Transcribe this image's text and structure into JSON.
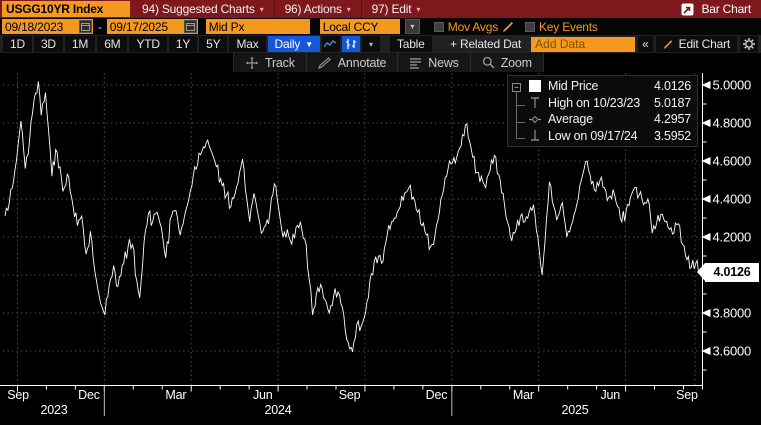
{
  "titlebar": {
    "ticker": "USGG10YR Index",
    "menus": [
      {
        "label": "94) Suggested Charts"
      },
      {
        "label": "96) Actions"
      },
      {
        "label": "97) Edit"
      }
    ],
    "export_label": "Bar Chart"
  },
  "fields": {
    "date_start": "09/18/2023",
    "date_end": "09/17/2025",
    "dash": "-",
    "price_field": "Mid Px",
    "currency": "Local CCY",
    "mov_avgs_label": "Mov Avgs",
    "key_events_label": "Key Events"
  },
  "periods": {
    "buttons": [
      "1D",
      "3D",
      "1M",
      "6M",
      "YTD",
      "1Y",
      "5Y",
      "Max"
    ],
    "frequency": "Daily",
    "table_label": "Table",
    "related_label": "+ Related Dat",
    "add_data_placeholder": "Add Data",
    "collapse_label": "«",
    "edit_chart_label": "Edit Chart"
  },
  "toolbar": {
    "items": [
      {
        "label": "Track"
      },
      {
        "label": "Annotate"
      },
      {
        "label": "News"
      },
      {
        "label": "Zoom"
      }
    ]
  },
  "legend": {
    "rows": [
      {
        "label": "Mid Price",
        "value": "4.0126"
      },
      {
        "label": "High on 10/23/23",
        "value": "5.0187"
      },
      {
        "label": "Average",
        "value": "4.2957"
      },
      {
        "label": "Low on 09/17/24",
        "value": "3.5952"
      }
    ]
  },
  "colors": {
    "maroon": "#7e181c",
    "amber": "#f5991e",
    "blue": "#1457d8",
    "chart_line": "#ffffff",
    "grid": "#4d4d4d",
    "axis": "#ffffff"
  },
  "chart_data": {
    "type": "line",
    "title": "USGG10YR Index — Mid Price daily yield",
    "x_unit": "months since 2023-09-18",
    "x_range": [
      0,
      24
    ],
    "ylim_visible": [
      3.45,
      5.05
    ],
    "grid": "dotted",
    "legend_position": "top-right",
    "y_ticks": [
      {
        "value": 5.0,
        "label": "5.0000"
      },
      {
        "value": 4.8,
        "label": "4.8000"
      },
      {
        "value": 4.6,
        "label": "4.6000"
      },
      {
        "value": 4.4,
        "label": "4.4000"
      },
      {
        "value": 4.2,
        "label": "4.2000"
      },
      {
        "value": 3.8,
        "label": "3.8000"
      },
      {
        "value": 3.6,
        "label": "3.6000"
      }
    ],
    "unlabeled_gridline_value": 4.0,
    "last_price": {
      "value": 4.0126,
      "label": "4.0126"
    },
    "stats": {
      "mid": 4.0126,
      "high_date": "10/23/23",
      "high": 5.0187,
      "average": 4.2957,
      "low_date": "09/17/24",
      "low": 3.5952
    },
    "x_month_labels": [
      "Sep",
      "Dec",
      "Mar",
      "Jun",
      "Sep",
      "Dec",
      "Mar",
      "Jun",
      "Sep"
    ],
    "x_year_labels": [
      "2023",
      "2024",
      "2025"
    ],
    "series_anchors": [
      [
        0,
        4.31
      ],
      [
        0.15,
        4.38
      ],
      [
        0.3,
        4.5
      ],
      [
        0.45,
        4.68
      ],
      [
        0.55,
        4.81
      ],
      [
        0.7,
        4.56
      ],
      [
        0.85,
        4.71
      ],
      [
        1,
        4.92
      ],
      [
        1.15,
        5.019
      ],
      [
        1.25,
        4.84
      ],
      [
        1.4,
        4.96
      ],
      [
        1.5,
        4.77
      ],
      [
        1.62,
        4.52
      ],
      [
        1.75,
        4.66
      ],
      [
        1.9,
        4.57
      ],
      [
        2,
        4.44
      ],
      [
        2.15,
        4.53
      ],
      [
        2.3,
        4.41
      ],
      [
        2.5,
        4.26
      ],
      [
        2.65,
        4.31
      ],
      [
        2.8,
        4.11
      ],
      [
        2.95,
        4.23
      ],
      [
        3.1,
        4.02
      ],
      [
        3.3,
        3.85
      ],
      [
        3.45,
        3.79
      ],
      [
        3.6,
        3.95
      ],
      [
        3.75,
        4.05
      ],
      [
        3.9,
        3.94
      ],
      [
        4.1,
        4.06
      ],
      [
        4.25,
        4.15
      ],
      [
        4.4,
        4.16
      ],
      [
        4.55,
        3.97
      ],
      [
        4.65,
        3.88
      ],
      [
        4.8,
        4.17
      ],
      [
        4.95,
        4.32
      ],
      [
        5.1,
        4.28
      ],
      [
        5.25,
        4.33
      ],
      [
        5.4,
        4.25
      ],
      [
        5.55,
        4.09
      ],
      [
        5.75,
        4.31
      ],
      [
        5.9,
        4.34
      ],
      [
        6.05,
        4.21
      ],
      [
        6.2,
        4.31
      ],
      [
        6.35,
        4.4
      ],
      [
        6.5,
        4.52
      ],
      [
        6.65,
        4.58
      ],
      [
        6.8,
        4.65
      ],
      [
        7,
        4.71
      ],
      [
        7.15,
        4.64
      ],
      [
        7.3,
        4.57
      ],
      [
        7.5,
        4.47
      ],
      [
        7.65,
        4.42
      ],
      [
        7.8,
        4.36
      ],
      [
        7.95,
        4.43
      ],
      [
        8.1,
        4.54
      ],
      [
        8.2,
        4.61
      ],
      [
        8.35,
        4.4
      ],
      [
        8.45,
        4.28
      ],
      [
        8.6,
        4.43
      ],
      [
        8.75,
        4.31
      ],
      [
        8.85,
        4.22
      ],
      [
        9,
        4.26
      ],
      [
        9.15,
        4.33
      ],
      [
        9.3,
        4.48
      ],
      [
        9.45,
        4.35
      ],
      [
        9.6,
        4.2
      ],
      [
        9.75,
        4.24
      ],
      [
        9.9,
        4.16
      ],
      [
        10.05,
        4.25
      ],
      [
        10.2,
        4.28
      ],
      [
        10.35,
        4.19
      ],
      [
        10.5,
        3.98
      ],
      [
        10.62,
        3.79
      ],
      [
        10.75,
        3.9
      ],
      [
        10.9,
        3.95
      ],
      [
        11.05,
        3.87
      ],
      [
        11.2,
        3.8
      ],
      [
        11.35,
        3.89
      ],
      [
        11.5,
        3.91
      ],
      [
        11.65,
        3.83
      ],
      [
        11.8,
        3.66
      ],
      [
        11.95,
        3.62
      ],
      [
        12,
        3.5952
      ],
      [
        12.15,
        3.74
      ],
      [
        12.3,
        3.73
      ],
      [
        12.45,
        3.8
      ],
      [
        12.6,
        3.97
      ],
      [
        12.75,
        4.07
      ],
      [
        12.9,
        4.1
      ],
      [
        13.05,
        4.07
      ],
      [
        13.2,
        4.21
      ],
      [
        13.35,
        4.28
      ],
      [
        13.5,
        4.3
      ],
      [
        13.65,
        4.36
      ],
      [
        13.8,
        4.43
      ],
      [
        13.95,
        4.46
      ],
      [
        14.1,
        4.41
      ],
      [
        14.25,
        4.33
      ],
      [
        14.4,
        4.26
      ],
      [
        14.55,
        4.21
      ],
      [
        14.7,
        4.15
      ],
      [
        14.85,
        4.21
      ],
      [
        15,
        4.33
      ],
      [
        15.15,
        4.45
      ],
      [
        15.3,
        4.56
      ],
      [
        15.45,
        4.59
      ],
      [
        15.6,
        4.62
      ],
      [
        15.75,
        4.68
      ],
      [
        15.9,
        4.79
      ],
      [
        16.05,
        4.7
      ],
      [
        16.15,
        4.62
      ],
      [
        16.3,
        4.54
      ],
      [
        16.45,
        4.52
      ],
      [
        16.6,
        4.46
      ],
      [
        16.75,
        4.55
      ],
      [
        16.9,
        4.63
      ],
      [
        17.05,
        4.53
      ],
      [
        17.2,
        4.43
      ],
      [
        17.35,
        4.28
      ],
      [
        17.5,
        4.18
      ],
      [
        17.65,
        4.24
      ],
      [
        17.8,
        4.31
      ],
      [
        17.95,
        4.28
      ],
      [
        18.1,
        4.33
      ],
      [
        18.25,
        4.37
      ],
      [
        18.4,
        4.2
      ],
      [
        18.55,
        4.0
      ],
      [
        18.65,
        4.18
      ],
      [
        18.8,
        4.49
      ],
      [
        18.95,
        4.36
      ],
      [
        19.1,
        4.31
      ],
      [
        19.25,
        4.38
      ],
      [
        19.4,
        4.2
      ],
      [
        19.55,
        4.26
      ],
      [
        19.7,
        4.34
      ],
      [
        19.85,
        4.47
      ],
      [
        20,
        4.56
      ],
      [
        20.1,
        4.6
      ],
      [
        20.25,
        4.48
      ],
      [
        20.4,
        4.44
      ],
      [
        20.55,
        4.5
      ],
      [
        20.7,
        4.46
      ],
      [
        20.85,
        4.41
      ],
      [
        21,
        4.45
      ],
      [
        21.15,
        4.36
      ],
      [
        21.3,
        4.28
      ],
      [
        21.45,
        4.34
      ],
      [
        21.6,
        4.41
      ],
      [
        21.75,
        4.46
      ],
      [
        21.9,
        4.42
      ],
      [
        22.05,
        4.37
      ],
      [
        22.2,
        4.4
      ],
      [
        22.35,
        4.22
      ],
      [
        22.5,
        4.27
      ],
      [
        22.65,
        4.32
      ],
      [
        22.8,
        4.28
      ],
      [
        22.95,
        4.24
      ],
      [
        23.1,
        4.22
      ],
      [
        23.25,
        4.27
      ],
      [
        23.4,
        4.16
      ],
      [
        23.55,
        4.08
      ],
      [
        23.7,
        4.04
      ],
      [
        23.85,
        4.06
      ],
      [
        24,
        4.0126
      ]
    ]
  }
}
